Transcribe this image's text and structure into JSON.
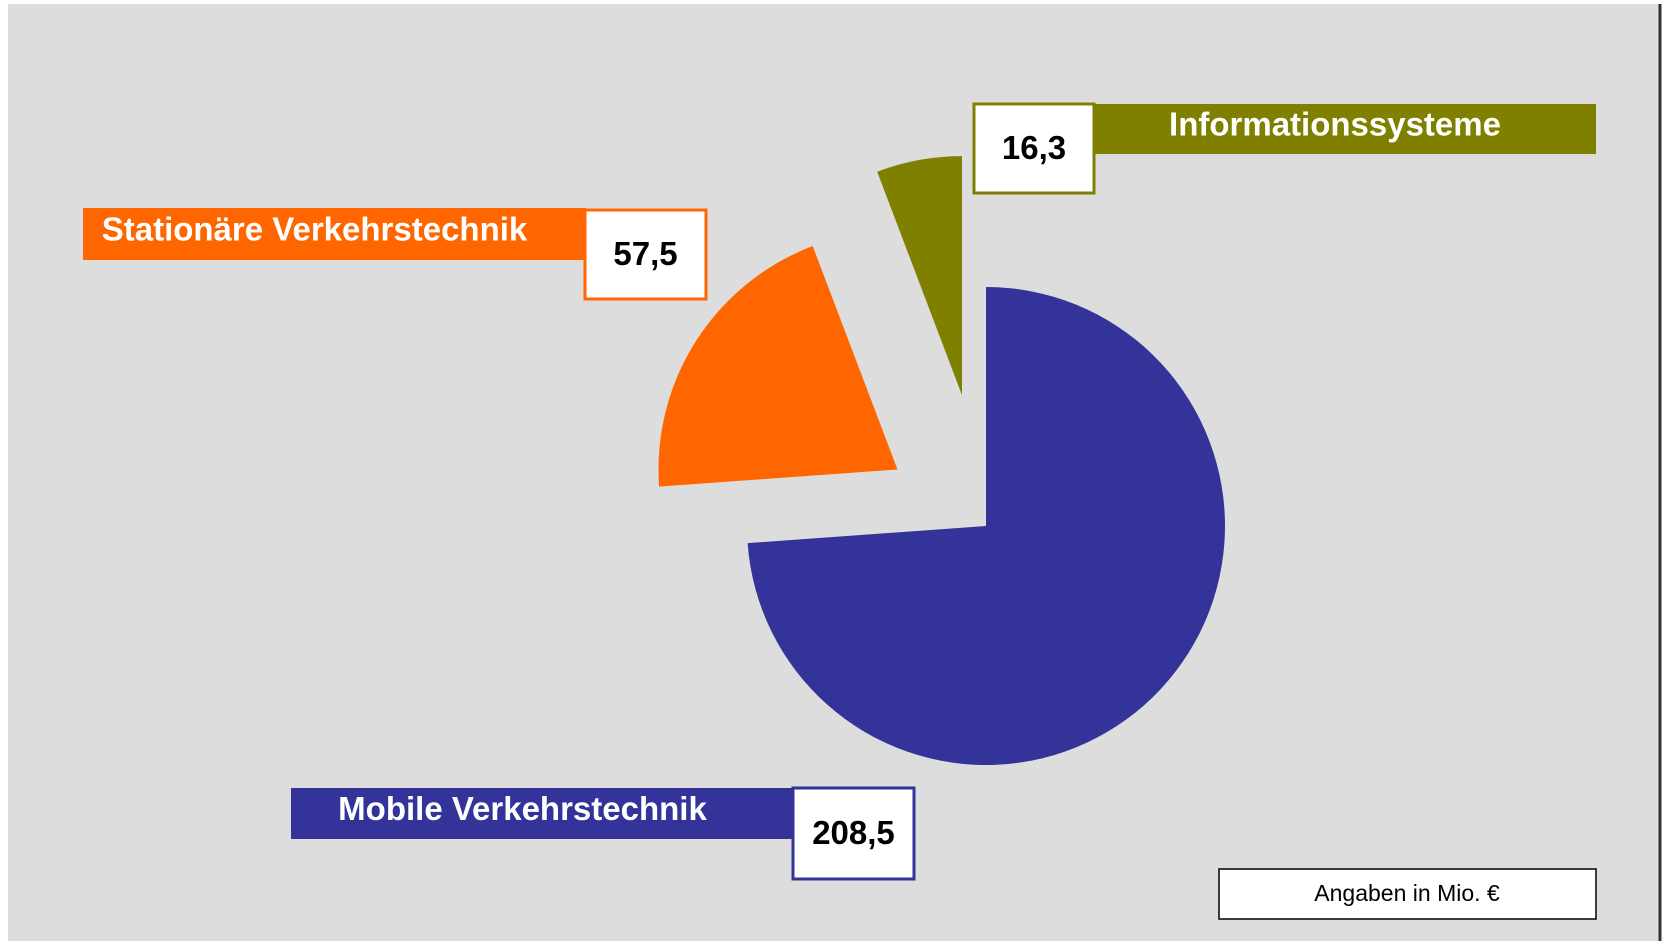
{
  "chart_data": {
    "type": "pie",
    "categories": [
      "Mobile Verkehrstechnik",
      "Stationäre Verkehrstechnik",
      "Informationssysteme"
    ],
    "values": [
      208.5,
      57.5,
      16.3
    ],
    "value_labels": [
      "208,5",
      "57,5",
      "16,3"
    ],
    "colors": [
      "#333399",
      "#ff6600",
      "#808000"
    ],
    "note": "Angaben in Mio. €"
  }
}
